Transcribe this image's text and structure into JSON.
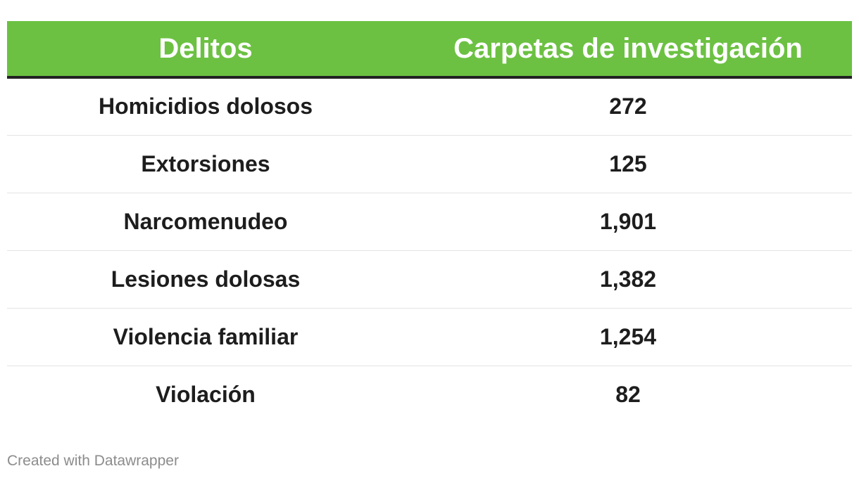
{
  "chart_data": {
    "type": "table",
    "columns": [
      "Delitos",
      "Carpetas de investigación"
    ],
    "rows": [
      [
        "Homicidios dolosos",
        "272"
      ],
      [
        "Extorsiones",
        "125"
      ],
      [
        "Narcomenudeo",
        "1,901"
      ],
      [
        "Lesiones dolosas",
        "1,382"
      ],
      [
        "Violencia familiar",
        "1,254"
      ],
      [
        "Violación",
        "82"
      ]
    ],
    "values": [
      272,
      125,
      1901,
      1382,
      1254,
      82
    ]
  },
  "colors": {
    "header_bg": "#6cc142",
    "header_text": "#ffffff",
    "cell_text": "#1d1d1d"
  },
  "footer": "Created with Datawrapper"
}
